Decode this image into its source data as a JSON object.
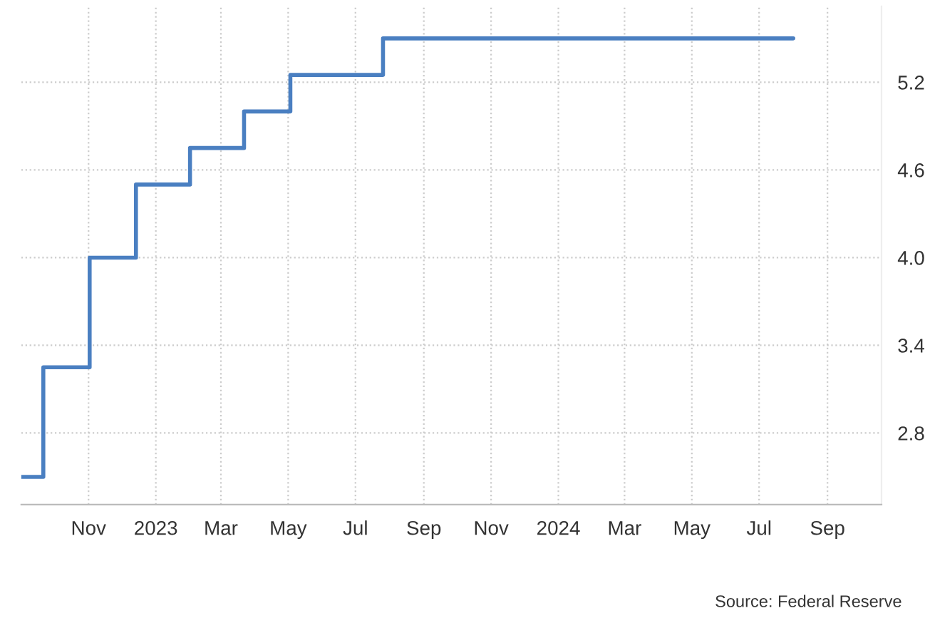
{
  "chart_data": {
    "type": "step",
    "x": [
      "2022-09-01",
      "2022-09-21",
      "2022-11-02",
      "2022-12-14",
      "2023-02-01",
      "2023-03-22",
      "2023-05-03",
      "2023-07-26",
      "2024-08-01"
    ],
    "series": [
      {
        "color": "#4a7fc1",
        "values": [
          2.5,
          3.25,
          4.0,
          4.5,
          4.75,
          5.0,
          5.25,
          5.5,
          5.5
        ]
      }
    ],
    "xlim": [
      "2022-09-01",
      "2024-10-20"
    ],
    "xticks": [
      {
        "value": "2022-11-01",
        "label": "Nov"
      },
      {
        "value": "2023-01-01",
        "label": "2023"
      },
      {
        "value": "2023-03-01",
        "label": "Mar"
      },
      {
        "value": "2023-05-01",
        "label": "May"
      },
      {
        "value": "2023-07-01",
        "label": "Jul"
      },
      {
        "value": "2023-09-01",
        "label": "Sep"
      },
      {
        "value": "2023-11-01",
        "label": "Nov"
      },
      {
        "value": "2024-01-01",
        "label": "2024"
      },
      {
        "value": "2024-03-01",
        "label": "Mar"
      },
      {
        "value": "2024-05-01",
        "label": "May"
      },
      {
        "value": "2024-07-01",
        "label": "Jul"
      },
      {
        "value": "2024-09-01",
        "label": "Sep"
      }
    ],
    "ylim": [
      2.31,
      5.72
    ],
    "yticks": [
      {
        "value": 2.8,
        "label": "2.8"
      },
      {
        "value": 3.4,
        "label": "3.4"
      },
      {
        "value": 4.0,
        "label": "4.0"
      },
      {
        "value": 4.6,
        "label": "4.6"
      },
      {
        "value": 5.2,
        "label": "5.2"
      }
    ],
    "grid": true,
    "line_style": "solid",
    "annotations": [
      "Source: Federal Reserve"
    ]
  }
}
